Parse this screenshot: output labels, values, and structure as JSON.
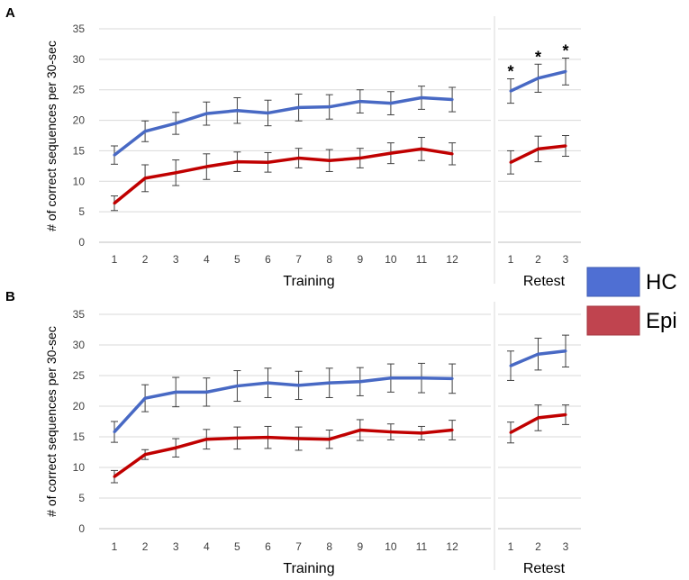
{
  "legend": {
    "items": [
      {
        "label": "HC",
        "color": "#4F6FD3"
      },
      {
        "label": "Epi",
        "color": "#C0444F"
      }
    ]
  },
  "colors": {
    "hc_line": "#4869C4",
    "epi_line": "#C00000",
    "grid": "#D9D9D9",
    "axis": "#BFBFBF",
    "error_bar": "#404040"
  },
  "chart_data": [
    {
      "panel_label": "A",
      "type": "line",
      "ylabel": "# of correct sequences per 30-sec",
      "ylim": [
        0,
        35
      ],
      "yticks": [
        "0",
        "5",
        "10",
        "15",
        "20",
        "25",
        "30",
        "35"
      ],
      "grid": true,
      "training": {
        "xlabel": "Training",
        "categories": [
          "1",
          "2",
          "3",
          "4",
          "5",
          "6",
          "7",
          "8",
          "9",
          "10",
          "11",
          "12"
        ],
        "series": [
          {
            "name": "HC",
            "values": [
              14.3,
              18.2,
              19.5,
              21.1,
              21.6,
              21.2,
              22.1,
              22.2,
              23.1,
              22.8,
              23.7,
              23.4
            ],
            "errors": [
              1.5,
              1.7,
              1.8,
              1.9,
              2.1,
              2.1,
              2.2,
              2.0,
              1.9,
              1.9,
              1.9,
              2.0
            ]
          },
          {
            "name": "Epi",
            "values": [
              6.4,
              10.5,
              11.4,
              12.4,
              13.2,
              13.1,
              13.8,
              13.4,
              13.8,
              14.6,
              15.3,
              14.5
            ],
            "errors": [
              1.2,
              2.2,
              2.1,
              2.1,
              1.6,
              1.6,
              1.6,
              1.8,
              1.6,
              1.7,
              1.9,
              1.8
            ]
          }
        ]
      },
      "retest": {
        "xlabel": "Retest",
        "categories": [
          "1",
          "2",
          "3"
        ],
        "series": [
          {
            "name": "HC",
            "values": [
              24.8,
              26.9,
              28.0
            ],
            "errors": [
              2.0,
              2.3,
              2.2
            ]
          },
          {
            "name": "Epi",
            "values": [
              13.1,
              15.3,
              15.8
            ],
            "errors": [
              1.9,
              2.1,
              1.7
            ]
          }
        ],
        "significance": [
          "*",
          "*",
          "*"
        ]
      }
    },
    {
      "panel_label": "B",
      "type": "line",
      "ylabel": "# of correct sequences per 30-sec",
      "ylim": [
        0,
        35
      ],
      "yticks": [
        "0",
        "5",
        "10",
        "15",
        "20",
        "25",
        "30",
        "35"
      ],
      "grid": true,
      "training": {
        "xlabel": "Training",
        "categories": [
          "1",
          "2",
          "3",
          "4",
          "5",
          "6",
          "7",
          "8",
          "9",
          "10",
          "11",
          "12"
        ],
        "series": [
          {
            "name": "HC",
            "values": [
              15.8,
              21.3,
              22.3,
              22.3,
              23.3,
              23.8,
              23.4,
              23.8,
              24.0,
              24.6,
              24.6,
              24.5
            ],
            "errors": [
              1.7,
              2.2,
              2.4,
              2.3,
              2.5,
              2.4,
              2.3,
              2.4,
              2.3,
              2.3,
              2.4,
              2.4
            ]
          },
          {
            "name": "Epi",
            "values": [
              8.5,
              12.1,
              13.2,
              14.6,
              14.8,
              14.9,
              14.7,
              14.6,
              16.1,
              15.8,
              15.6,
              16.1
            ],
            "errors": [
              1.0,
              0.8,
              1.5,
              1.6,
              1.8,
              1.8,
              1.9,
              1.5,
              1.7,
              1.3,
              1.1,
              1.6
            ]
          }
        ]
      },
      "retest": {
        "xlabel": "Retest",
        "categories": [
          "1",
          "2",
          "3"
        ],
        "series": [
          {
            "name": "HC",
            "values": [
              26.6,
              28.5,
              29.0
            ],
            "errors": [
              2.4,
              2.6,
              2.6
            ]
          },
          {
            "name": "Epi",
            "values": [
              15.7,
              18.1,
              18.6
            ],
            "errors": [
              1.7,
              2.1,
              1.6
            ]
          }
        ],
        "significance": []
      }
    }
  ]
}
